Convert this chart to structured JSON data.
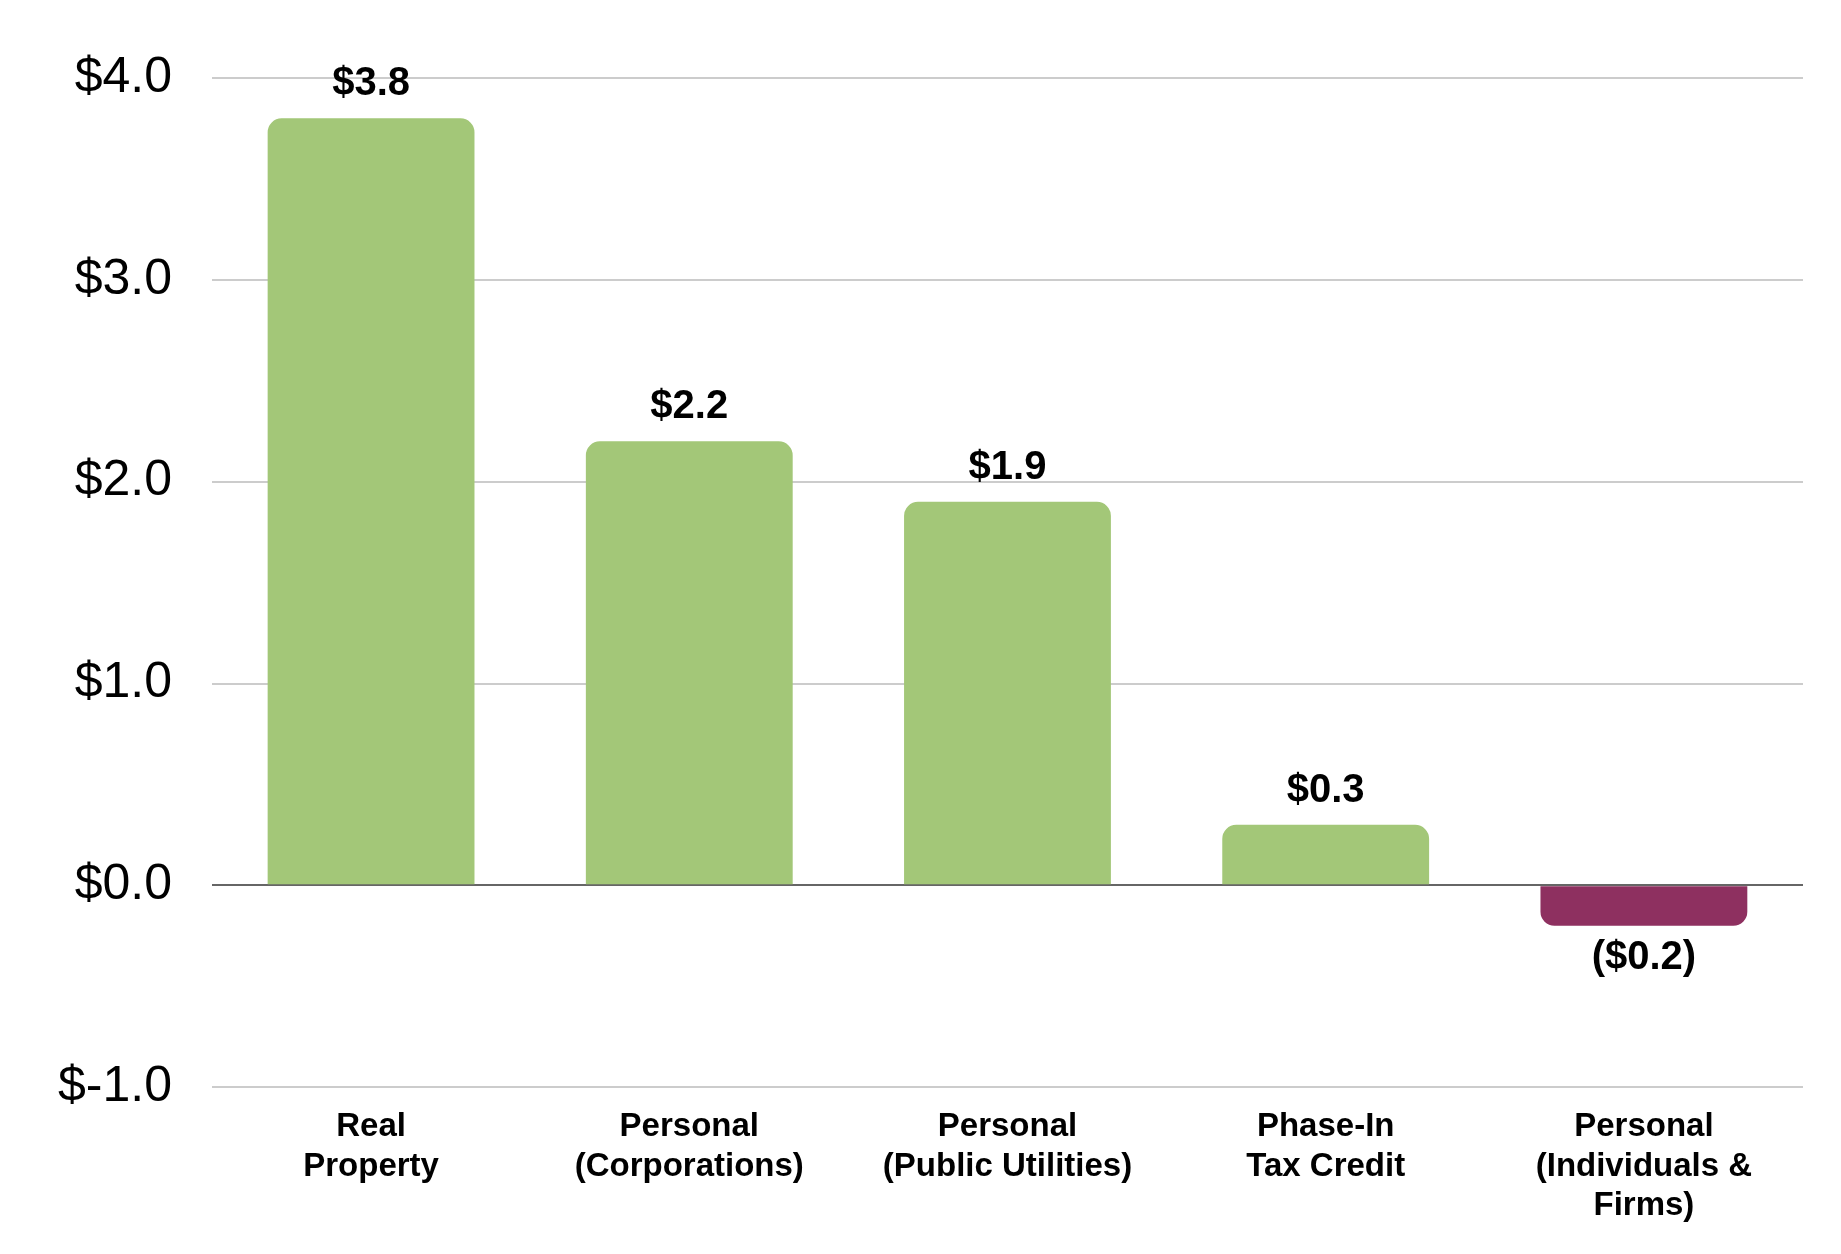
{
  "chart_data": {
    "type": "bar",
    "categories": [
      "Real\nProperty",
      "Personal\n(Corporations)",
      "Personal\n(Public Utilities)",
      "Phase-In\nTax Credit",
      "Personal\n(Individuals &\nFirms)"
    ],
    "values": [
      3.8,
      2.2,
      1.9,
      0.3,
      -0.2
    ],
    "colors": [
      "#a3c778",
      "#a3c778",
      "#a3c778",
      "#a3c778",
      "#8e3060"
    ],
    "value_labels": [
      "$3.8",
      "$2.2",
      "$1.9",
      "$0.3",
      "($0.2)"
    ],
    "ylim": [
      -1,
      4
    ],
    "yticks": [
      {
        "value": -1,
        "label": "$-1.0"
      },
      {
        "value": 0,
        "label": "$0.0"
      },
      {
        "value": 1,
        "label": "$1.0"
      },
      {
        "value": 2,
        "label": "$2.0"
      },
      {
        "value": 3,
        "label": "$3.0"
      },
      {
        "value": 4,
        "label": "$4.0"
      }
    ],
    "grid": "y",
    "legend": false
  }
}
